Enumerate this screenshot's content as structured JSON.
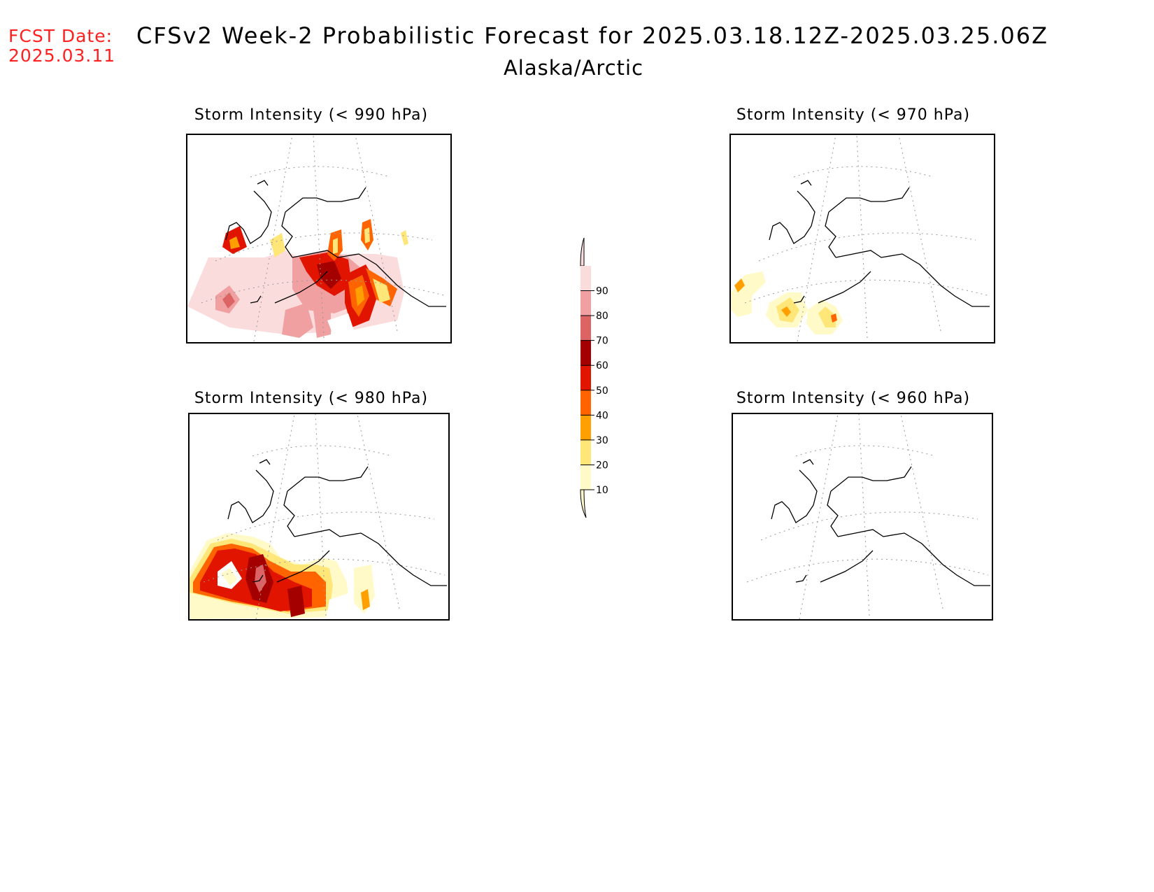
{
  "header": {
    "fcst_label": "FCST Date:",
    "fcst_date": "2025.03.11",
    "title": "CFSv2 Week-2 Probabilistic Forecast for 2025.03.18.12Z-2025.03.25.06Z",
    "region": "Alaska/Arctic"
  },
  "panels": [
    {
      "title": "Storm Intensity (< 990 hPa)"
    },
    {
      "title": "Storm Intensity (< 970 hPa)"
    },
    {
      "title": "Storm Intensity (< 980 hPa)"
    },
    {
      "title": "Storm Intensity (< 960 hPa)"
    }
  ],
  "legend": {
    "levels": [
      "10",
      "20",
      "30",
      "40",
      "50",
      "60",
      "70",
      "80",
      "90"
    ],
    "colors": [
      "#fffac8",
      "#ffe678",
      "#ffa000",
      "#ff6400",
      "#e11400",
      "#a50000",
      "#dc6464",
      "#f0a0a0",
      "#fbdcdc"
    ]
  }
}
